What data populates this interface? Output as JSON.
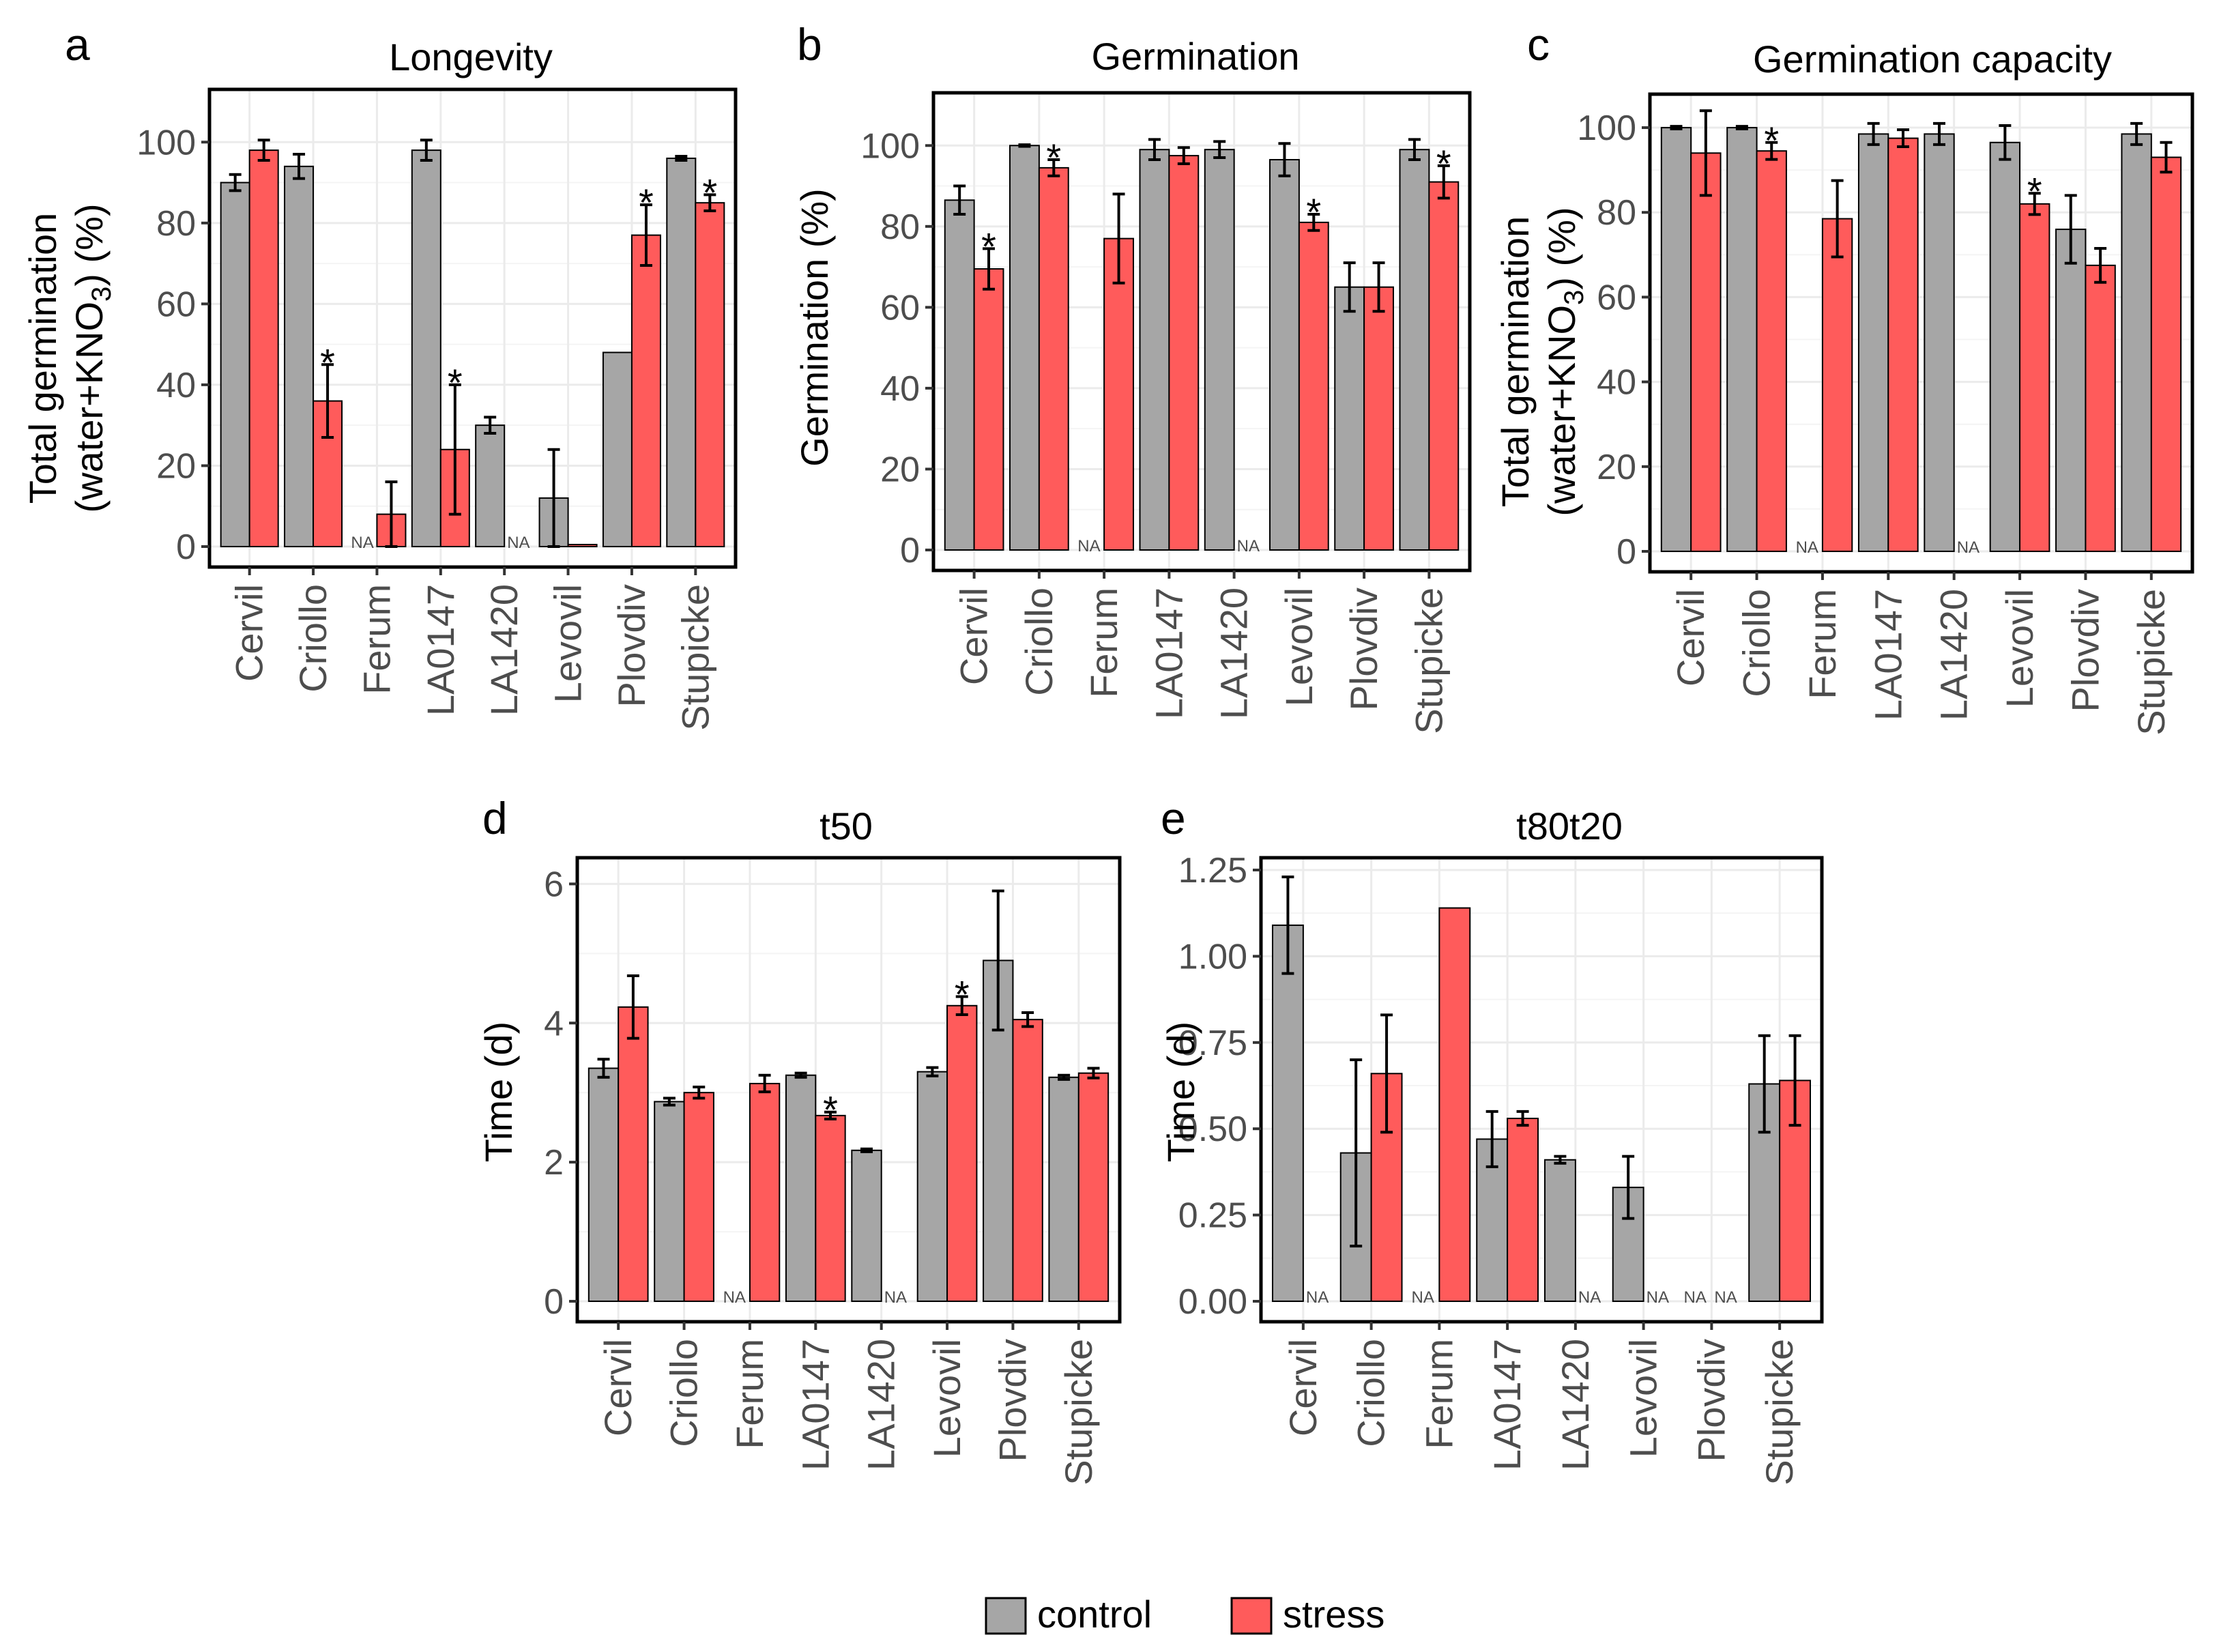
{
  "legend": {
    "items": [
      {
        "label": "control",
        "color": "#a6a6a6"
      },
      {
        "label": "stress",
        "color": "#ff5b5b"
      }
    ]
  },
  "colors": {
    "control": "#a6a6a6",
    "stress": "#ff5b5b"
  },
  "chart_data": [
    {
      "panel": "a",
      "type": "bar",
      "title": "Longevity",
      "ylabel_line1": "Total germination",
      "ylabel_line2": "(water+KNO3) (%)",
      "ylim": [
        0,
        110
      ],
      "yticks": [
        0,
        20,
        40,
        60,
        80,
        100
      ],
      "categories": [
        "Cervil",
        "Criollo",
        "Ferum",
        "LA0147",
        "LA1420",
        "Levovil",
        "Plovdiv",
        "Stupicke"
      ],
      "series": [
        {
          "name": "control",
          "values": [
            90,
            94,
            null,
            98,
            30,
            12,
            48,
            96
          ],
          "errors": [
            2,
            3,
            null,
            2.5,
            2,
            12,
            0,
            0.5
          ]
        },
        {
          "name": "stress",
          "values": [
            98,
            36,
            8,
            24,
            null,
            0.5,
            77,
            85
          ],
          "errors": [
            2.5,
            9,
            8,
            16,
            null,
            0,
            7.5,
            2
          ],
          "significant": [
            false,
            true,
            false,
            true,
            false,
            false,
            true,
            true
          ]
        }
      ]
    },
    {
      "panel": "b",
      "type": "bar",
      "title": "Germination",
      "ylabel_line1": "Germination (%)",
      "ylim": [
        0,
        110
      ],
      "yticks": [
        0,
        20,
        40,
        60,
        80,
        100
      ],
      "categories": [
        "Cervil",
        "Criollo",
        "Ferum",
        "LA0147",
        "LA1420",
        "Levovil",
        "Plovdiv",
        "Stupicke"
      ],
      "series": [
        {
          "name": "control",
          "values": [
            86.5,
            100,
            null,
            99,
            99,
            96.5,
            65,
            99
          ],
          "errors": [
            3.5,
            0.2,
            null,
            2.5,
            2,
            4,
            6,
            2.5
          ]
        },
        {
          "name": "stress",
          "values": [
            69.5,
            94.5,
            77,
            97.5,
            null,
            81,
            65,
            91
          ],
          "errors": [
            5,
            2,
            11,
            2,
            null,
            2,
            6,
            4
          ],
          "significant": [
            true,
            true,
            false,
            false,
            false,
            true,
            false,
            true
          ]
        }
      ]
    },
    {
      "panel": "c",
      "type": "bar",
      "title": "Germination capacity",
      "ylabel_line1": "Total germination",
      "ylabel_line2": "(water+KNO3) (%)",
      "ylim": [
        0,
        105
      ],
      "yticks": [
        0,
        20,
        40,
        60,
        80,
        100
      ],
      "categories": [
        "Cervil",
        "Criollo",
        "Ferum",
        "LA0147",
        "LA1420",
        "Levovil",
        "Plovdiv",
        "Stupicke"
      ],
      "series": [
        {
          "name": "control",
          "values": [
            100,
            100,
            null,
            98.5,
            98.5,
            96.5,
            76,
            98.5
          ],
          "errors": [
            0.3,
            0.3,
            null,
            2.5,
            2.5,
            4,
            8,
            2.5
          ]
        },
        {
          "name": "stress",
          "values": [
            94,
            94.5,
            78.5,
            97.5,
            null,
            82,
            67.5,
            93
          ],
          "errors": [
            10,
            2,
            9,
            2,
            null,
            2.5,
            4,
            3.5
          ],
          "significant": [
            false,
            true,
            false,
            false,
            false,
            true,
            false,
            false
          ]
        }
      ]
    },
    {
      "panel": "d",
      "type": "bar",
      "title": "t50",
      "ylabel_line1": "Time (d)",
      "ylim": [
        0,
        6.2
      ],
      "yticks": [
        0,
        2,
        4,
        6
      ],
      "categories": [
        "Cervil",
        "Criollo",
        "Ferum",
        "LA0147",
        "LA1420",
        "Levovil",
        "Plovdiv",
        "Stupicke"
      ],
      "series": [
        {
          "name": "control",
          "values": [
            3.35,
            2.87,
            null,
            3.25,
            2.17,
            3.3,
            4.9,
            3.22
          ],
          "errors": [
            0.13,
            0.05,
            null,
            0.03,
            0.02,
            0.06,
            1.0,
            0.03
          ]
        },
        {
          "name": "stress",
          "values": [
            4.23,
            3.0,
            3.13,
            2.67,
            null,
            4.25,
            4.05,
            3.28
          ],
          "errors": [
            0.45,
            0.08,
            0.12,
            0.05,
            null,
            0.13,
            0.1,
            0.07
          ],
          "significant": [
            false,
            false,
            false,
            true,
            false,
            true,
            false,
            false
          ]
        }
      ]
    },
    {
      "panel": "e",
      "type": "bar",
      "title": "t80t20",
      "ylabel_line1": "Time (d)",
      "ylim": [
        0,
        1.25
      ],
      "yticks": [
        "0.00",
        "0.25",
        "0.50",
        "0.75",
        "1.00",
        "1.25"
      ],
      "categories": [
        "Cervil",
        "Criollo",
        "Ferum",
        "LA0147",
        "LA1420",
        "Levovil",
        "Plovdiv",
        "Stupicke"
      ],
      "series": [
        {
          "name": "control",
          "values": [
            1.09,
            0.43,
            null,
            0.47,
            0.41,
            0.33,
            null,
            0.63
          ],
          "errors": [
            0.14,
            0.27,
            null,
            0.08,
            0.01,
            0.09,
            null,
            0.14
          ]
        },
        {
          "name": "stress",
          "values": [
            null,
            0.66,
            1.14,
            0.53,
            null,
            null,
            null,
            0.64
          ],
          "errors": [
            null,
            0.17,
            0,
            0.02,
            null,
            null,
            null,
            0.13
          ],
          "significant": [
            false,
            false,
            false,
            false,
            false,
            false,
            false,
            false
          ]
        }
      ]
    }
  ],
  "na_label": "NA",
  "star_label": "*"
}
